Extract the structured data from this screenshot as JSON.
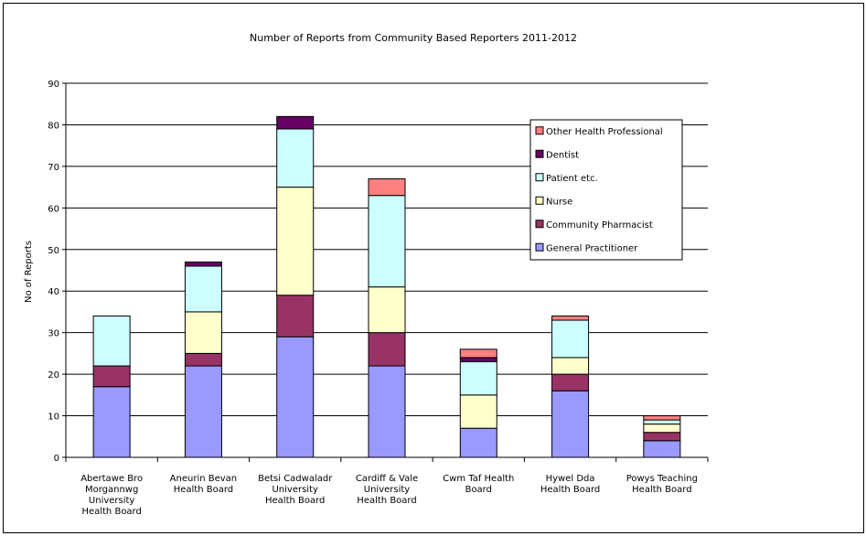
{
  "chart_data": {
    "type": "bar",
    "stacked": true,
    "title": "Number of Reports from Community Based Reporters 2011-2012",
    "xlabel": "",
    "ylabel": "No of Reports",
    "ylim": [
      0,
      90
    ],
    "yticks": [
      0,
      10,
      20,
      30,
      40,
      50,
      60,
      70,
      80,
      90
    ],
    "grid": true,
    "legend_position": "right",
    "categories": [
      [
        "Abertawe Bro",
        "Morgannwg",
        "University",
        "Health Board"
      ],
      [
        "Aneurin Bevan",
        "Health Board"
      ],
      [
        "Betsi Cadwaladr",
        "University",
        "Health Board"
      ],
      [
        "Cardiff & Vale",
        "University",
        "Health Board"
      ],
      [
        "Cwm Taf Health",
        "Board"
      ],
      [
        "Hywel Dda",
        "Health Board"
      ],
      [
        "Powys Teaching",
        "Health Board"
      ]
    ],
    "series": [
      {
        "name": "General Practitioner",
        "color": "#9999ff",
        "values": [
          17,
          22,
          29,
          22,
          7,
          16,
          4
        ]
      },
      {
        "name": "Community Pharmacist",
        "color": "#993366",
        "values": [
          5,
          3,
          10,
          8,
          0,
          4,
          2
        ]
      },
      {
        "name": "Nurse",
        "color": "#ffffcc",
        "values": [
          0,
          10,
          26,
          11,
          8,
          4,
          2
        ]
      },
      {
        "name": "Patient etc.",
        "color": "#ccffff",
        "values": [
          12,
          11,
          14,
          22,
          8,
          9,
          1
        ]
      },
      {
        "name": "Dentist",
        "color": "#660066",
        "values": [
          0,
          1,
          3,
          0,
          1,
          0,
          0
        ]
      },
      {
        "name": "Other Health Professional",
        "color": "#ff8080",
        "values": [
          0,
          0,
          0,
          4,
          2,
          1,
          1
        ]
      }
    ]
  }
}
